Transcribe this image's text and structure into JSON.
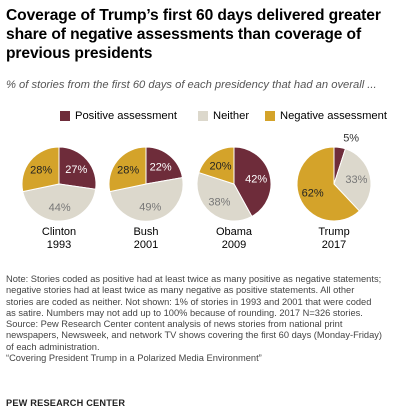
{
  "header": {
    "title_lines": [
      "Coverage of Trump’s first 60 days delivered greater",
      "share of negative assessments than coverage of",
      "previous presidents"
    ],
    "subtitle": "% of stories from the first 60 days of each presidency that had an overall ..."
  },
  "chart_data": {
    "type": "pie",
    "title": "Coverage of Trump’s first 60 days delivered greater share of negative assessments than coverage of previous presidents",
    "subtitle": "% of stories from the first 60 days of each presidency that had an overall ...",
    "legend": {
      "placement": "top",
      "entries": [
        "Positive assessment",
        "Neither",
        "Negative assessment"
      ]
    },
    "colors": {
      "Positive assessment": "#6e2c3a",
      "Neither": "#dcd8cc",
      "Negative assessment": "#d4a32a"
    },
    "pies": [
      {
        "name": "Clinton",
        "year": "1993",
        "values": {
          "Positive assessment": 27,
          "Neither": 44,
          "Negative assessment": 28
        },
        "labels": {
          "Positive assessment": "27%",
          "Neither": "44%",
          "Negative assessment": "28%"
        }
      },
      {
        "name": "Bush",
        "year": "2001",
        "values": {
          "Positive assessment": 22,
          "Neither": 49,
          "Negative assessment": 28
        },
        "labels": {
          "Positive assessment": "22%",
          "Neither": "49%",
          "Negative assessment": "28%"
        }
      },
      {
        "name": "Obama",
        "year": "2009",
        "values": {
          "Positive assessment": 42,
          "Neither": 38,
          "Negative assessment": 20
        },
        "labels": {
          "Positive assessment": "42%",
          "Neither": "38%",
          "Negative assessment": "20%"
        }
      },
      {
        "name": "Trump",
        "year": "2017",
        "values": {
          "Positive assessment": 5,
          "Neither": 33,
          "Negative assessment": 62
        },
        "labels": {
          "Positive assessment": "5%",
          "Neither": "33%",
          "Negative assessment": "62%"
        }
      }
    ]
  },
  "footer": {
    "note_lines": [
      "Note: Stories coded as positive had at least twice as many positive as negative statements;",
      "negative stories had at least twice as many negative as positive statements. All other",
      "stories are coded as neither. Not shown: 1% of stories in 1993 and 2001 that were coded",
      "as satire.  Numbers may not add up to 100% because of rounding. 2017 N=326 stories.",
      "Source: Pew Research Center content analysis of news stories from national print",
      "newspapers, Newsweek, and network TV shows covering the first 60 days (Monday-Friday)",
      "of each administration.",
      "“Covering President Trump in a Polarized Media Environment”"
    ],
    "brand": "PEW RESEARCH CENTER"
  }
}
